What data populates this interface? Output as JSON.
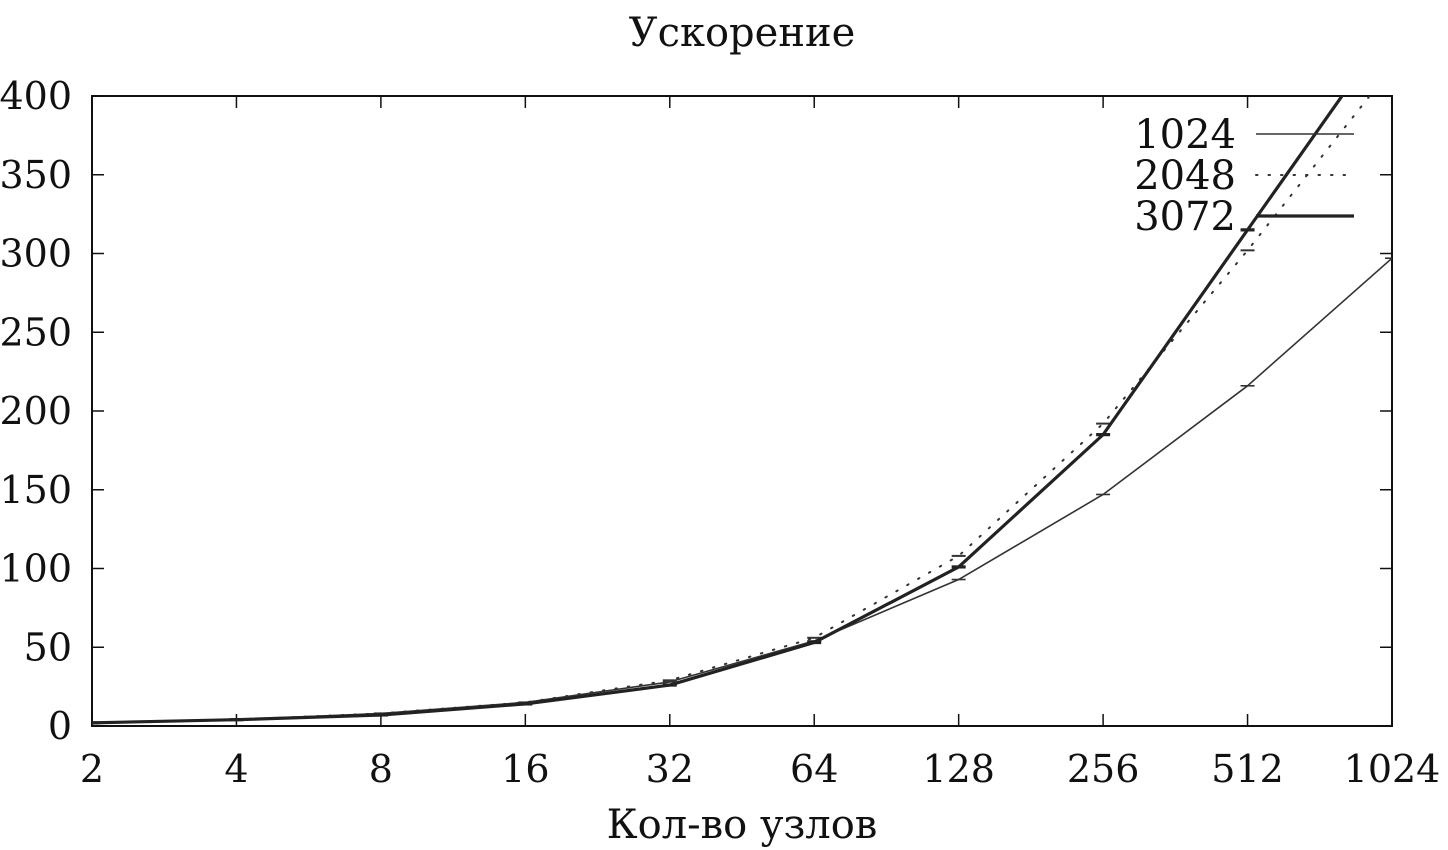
{
  "chart_data": {
    "type": "line",
    "title": "Ускорение",
    "xlabel": "Кол-во узлов",
    "ylabel": "",
    "x_scale": "log2",
    "x": [
      2,
      4,
      8,
      16,
      32,
      64,
      128,
      256,
      512,
      1024
    ],
    "x_tick_labels": [
      "2",
      "4",
      "8",
      "16",
      "32",
      "64",
      "128",
      "256",
      "512",
      "1024"
    ],
    "xlim": [
      2,
      1024
    ],
    "ylim": [
      0,
      400
    ],
    "y_ticks": [
      0,
      50,
      100,
      150,
      200,
      250,
      300,
      350,
      400
    ],
    "y_tick_labels": [
      "0",
      "50",
      "100",
      "150",
      "200",
      "250",
      "300",
      "350",
      "400"
    ],
    "grid": false,
    "legend_position": "top-right",
    "series": [
      {
        "name": "1024",
        "style": "thin",
        "color": "#333333",
        "values": [
          2,
          4,
          8,
          15,
          28,
          54,
          93,
          147,
          216,
          297
        ]
      },
      {
        "name": "2048",
        "style": "dotted",
        "color": "#333333",
        "values": [
          2,
          4,
          8,
          15,
          29,
          56,
          108,
          192,
          302,
          418
        ]
      },
      {
        "name": "3072",
        "style": "thick",
        "color": "#222222",
        "values": [
          2,
          4,
          7,
          14,
          26,
          53,
          101,
          185,
          315,
          445
        ]
      }
    ]
  }
}
